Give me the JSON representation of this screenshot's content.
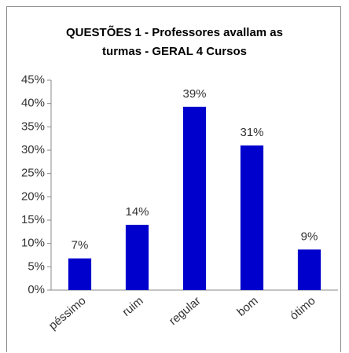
{
  "chart_data": {
    "type": "bar",
    "title": "QUESTÕES 1 - Professores avallam as turmas - GERAL 4 Cursos",
    "categories": [
      "péssimo",
      "ruim",
      "regular",
      "bom",
      "ótimo"
    ],
    "values": [
      6.8,
      14,
      39.3,
      31,
      8.7
    ],
    "value_labels": [
      "7%",
      "14%",
      "39%",
      "31%",
      "9%"
    ],
    "color": "#0000cc",
    "ylim": [
      0,
      45
    ],
    "yticks": [
      {
        "value": 0,
        "label": "0%"
      },
      {
        "value": 5,
        "label": "5%"
      },
      {
        "value": 10,
        "label": "10%"
      },
      {
        "value": 15,
        "label": "15%"
      },
      {
        "value": 20,
        "label": "20%"
      },
      {
        "value": 25,
        "label": "25%"
      },
      {
        "value": 30,
        "label": "30%"
      },
      {
        "value": 35,
        "label": "35%"
      },
      {
        "value": 40,
        "label": "40%"
      },
      {
        "value": 45,
        "label": "45%"
      }
    ],
    "grid": false
  }
}
